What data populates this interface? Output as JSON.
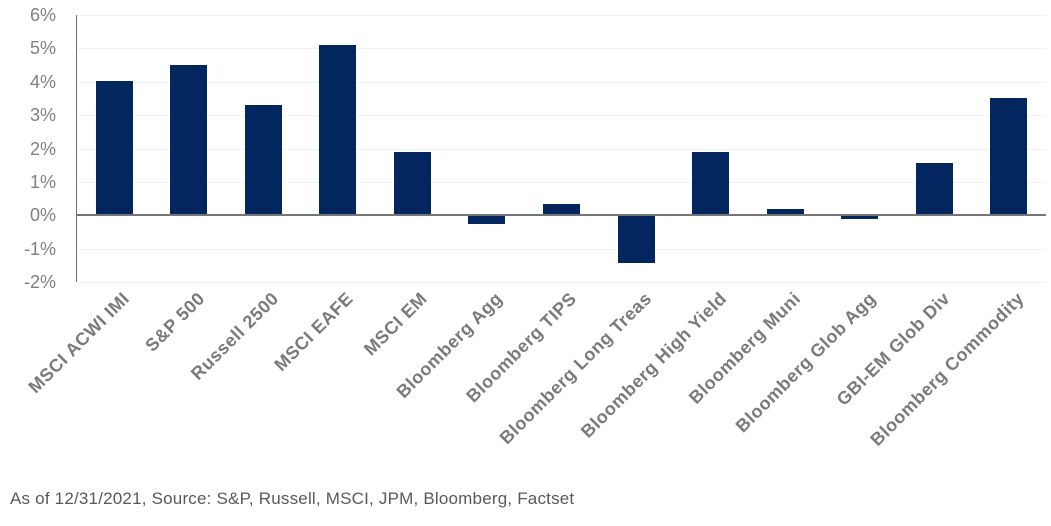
{
  "chart_data": {
    "type": "bar",
    "title": "",
    "xlabel": "",
    "ylabel": "",
    "categories": [
      "MSCI ACWI IMI",
      "S&P 500",
      "Russell 2500",
      "MSCI EAFE",
      "MSCI EM",
      "Bloomberg Agg",
      "Bloomberg TIPS",
      "Bloomberg Long Treas",
      "Bloomberg High Yield",
      "Bloomberg Muni",
      "Bloomberg Glob Agg",
      "GBI-EM Glob Div",
      "Bloomberg Commodity"
    ],
    "values": [
      4.0,
      4.5,
      3.3,
      5.1,
      1.9,
      -0.26,
      0.32,
      -1.43,
      1.9,
      0.17,
      -0.13,
      1.55,
      3.5
    ],
    "y_ticks": [
      {
        "label": "6%",
        "value": 6
      },
      {
        "label": "5%",
        "value": 5
      },
      {
        "label": "4%",
        "value": 4
      },
      {
        "label": "3%",
        "value": 3
      },
      {
        "label": "2%",
        "value": 2
      },
      {
        "label": "1%",
        "value": 1
      },
      {
        "label": "0%",
        "value": 0
      },
      {
        "label": "-1%",
        "value": -1
      },
      {
        "label": "-2%",
        "value": -2
      }
    ],
    "ylim": [
      -2,
      6
    ],
    "grid": true,
    "legend": "none",
    "bar_color": "#03265f",
    "gridline_color": "#f2f2f2",
    "axis_line_color": "#707070",
    "baseline_color": "#757575",
    "y_tick_label_color": "#808080",
    "x_tick_label_color": "#7a7a7a"
  },
  "footer": {
    "text": "As of 12/31/2021, Source: S&P, Russell, MSCI, JPM, Bloomberg, Factset"
  }
}
